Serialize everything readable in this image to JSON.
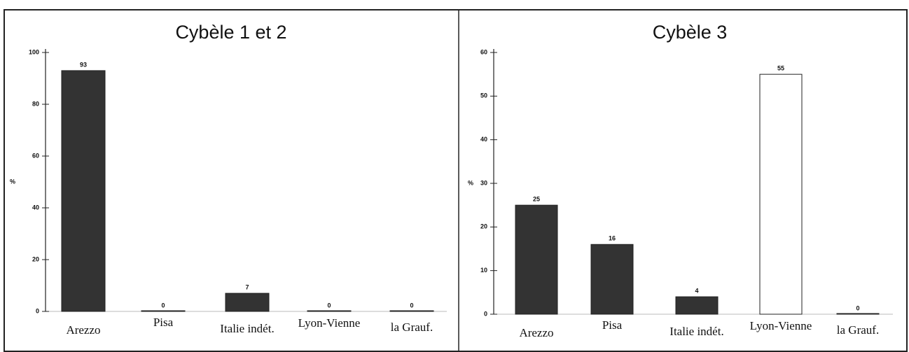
{
  "chart_data": [
    {
      "type": "bar",
      "title": "Cybèle 1 et 2",
      "y_label": "%",
      "categories": [
        "Arezzo",
        "Pisa",
        "Italie indét.",
        "Lyon-Vienne",
        "la Grauf."
      ],
      "values": [
        93,
        0,
        7,
        0,
        0
      ],
      "colors": [
        "#333333",
        "#333333",
        "#333333",
        "#333333",
        "#333333"
      ],
      "ylim": [
        0,
        100
      ],
      "yticks": [
        0,
        20,
        40,
        60,
        80,
        100
      ]
    },
    {
      "type": "bar",
      "title": "Cybèle 3",
      "y_label": "%",
      "categories": [
        "Arezzo",
        "Pisa",
        "Italie indét.",
        "Lyon-Vienne",
        "la Grauf."
      ],
      "values": [
        25,
        16,
        4,
        55,
        0
      ],
      "colors": [
        "#333333",
        "#333333",
        "#333333",
        "#ffffff",
        "#333333"
      ],
      "ylim": [
        0,
        60
      ],
      "yticks": [
        0,
        10,
        20,
        30,
        40,
        50,
        60
      ]
    }
  ]
}
